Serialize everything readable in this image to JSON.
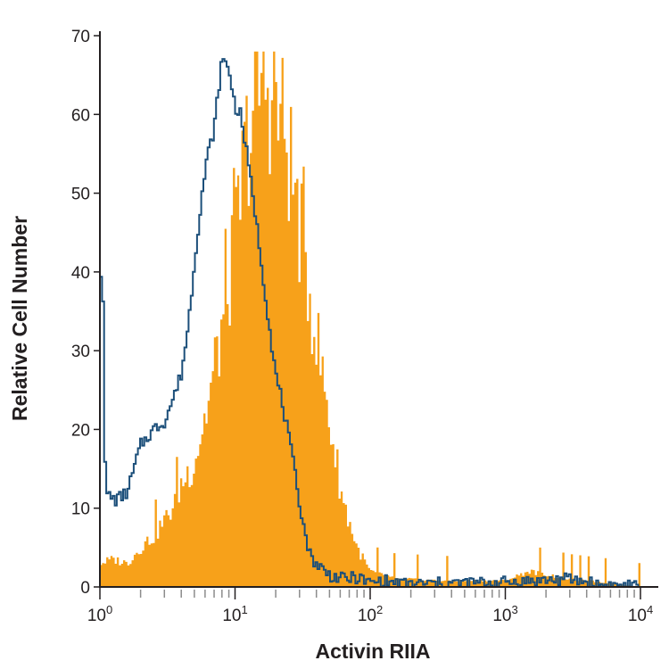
{
  "chart_data": {
    "type": "histogram",
    "xlabel": "Activin RIIA",
    "ylabel": "Relative Cell Number",
    "x_scale": "log10",
    "xlim": [
      1,
      10000
    ],
    "ylim": [
      0,
      70
    ],
    "x_ticks": [
      {
        "value": 1,
        "base": "10",
        "exp": "0"
      },
      {
        "value": 10,
        "base": "10",
        "exp": "1"
      },
      {
        "value": 100,
        "base": "10",
        "exp": "2"
      },
      {
        "value": 1000,
        "base": "10",
        "exp": "3"
      },
      {
        "value": 10000,
        "base": "10",
        "exp": "4"
      }
    ],
    "y_ticks": [
      "0",
      "10",
      "20",
      "30",
      "40",
      "50",
      "60",
      "70"
    ],
    "grid": false,
    "series": [
      {
        "style": "filled",
        "color": "#f7a11a",
        "points": [
          [
            1,
            3
          ],
          [
            1.25,
            3.5
          ],
          [
            1.6,
            3
          ],
          [
            2,
            5
          ],
          [
            2.5,
            6.5
          ],
          [
            3.2,
            9
          ],
          [
            4,
            13
          ],
          [
            5,
            16
          ],
          [
            6.3,
            23
          ],
          [
            8,
            33
          ],
          [
            10,
            44
          ],
          [
            12.6,
            58
          ],
          [
            16,
            65
          ],
          [
            20,
            62
          ],
          [
            25,
            55
          ],
          [
            32,
            43
          ],
          [
            40,
            32
          ],
          [
            50,
            21
          ],
          [
            63,
            11
          ],
          [
            80,
            5
          ],
          [
            100,
            2
          ],
          [
            126,
            1.5
          ],
          [
            160,
            1
          ],
          [
            200,
            1
          ],
          [
            320,
            0.8
          ],
          [
            1000,
            0.8
          ],
          [
            1500,
            2
          ],
          [
            3000,
            1
          ],
          [
            6000,
            0.5
          ],
          [
            10000,
            0
          ]
        ]
      },
      {
        "style": "outline",
        "color": "#1c4f7a",
        "points": [
          [
            1,
            40
          ],
          [
            1.05,
            40
          ],
          [
            1.1,
            12
          ],
          [
            1.3,
            11
          ],
          [
            1.6,
            12
          ],
          [
            2,
            18
          ],
          [
            2.5,
            20
          ],
          [
            3,
            21
          ],
          [
            3.5,
            24
          ],
          [
            4,
            27
          ],
          [
            4.5,
            33
          ],
          [
            5,
            41
          ],
          [
            5.6,
            49
          ],
          [
            6.3,
            55
          ],
          [
            7,
            58
          ],
          [
            8,
            67
          ],
          [
            9,
            66
          ],
          [
            10,
            61
          ],
          [
            11,
            60
          ],
          [
            12,
            56
          ],
          [
            14,
            48
          ],
          [
            16,
            40
          ],
          [
            18,
            33
          ],
          [
            20,
            27
          ],
          [
            22,
            24
          ],
          [
            25,
            19
          ],
          [
            28,
            14
          ],
          [
            32,
            8
          ],
          [
            36,
            4
          ],
          [
            40,
            3
          ],
          [
            50,
            1.5
          ],
          [
            63,
            1
          ],
          [
            80,
            1.2
          ],
          [
            100,
            0.5
          ],
          [
            126,
            0.8
          ],
          [
            160,
            0.4
          ],
          [
            250,
            0.4
          ],
          [
            500,
            0.5
          ],
          [
            1000,
            0.6
          ],
          [
            3000,
            1
          ],
          [
            5000,
            0.3
          ],
          [
            10000,
            0
          ]
        ]
      }
    ]
  }
}
